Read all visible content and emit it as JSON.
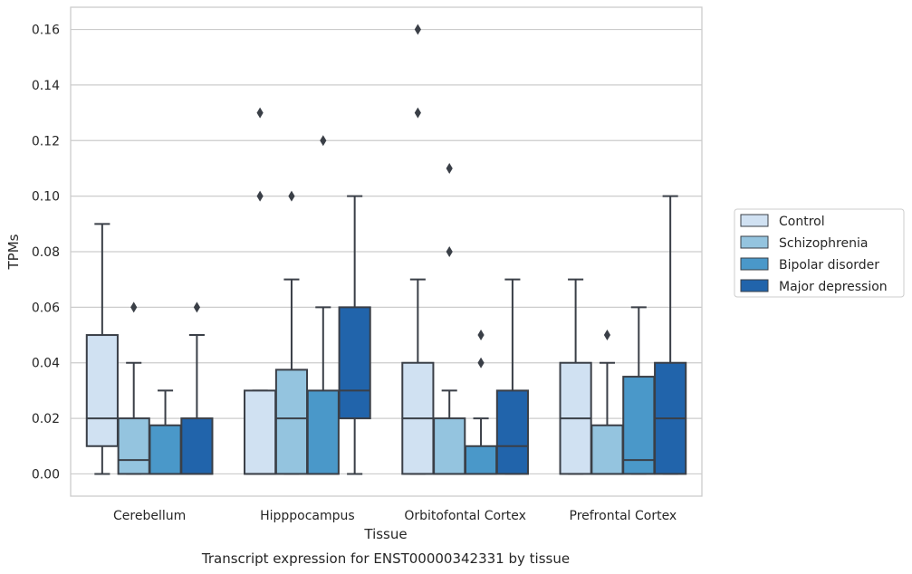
{
  "chart_data": {
    "type": "box",
    "xlabel": "Tissue",
    "ylabel": "TPMs",
    "caption": "Transcript expression for ENST00000342331 by tissue",
    "ylim": [
      -0.008,
      0.168
    ],
    "yticks": [
      0.0,
      0.02,
      0.04,
      0.06,
      0.08,
      0.1,
      0.12,
      0.14,
      0.16
    ],
    "ytick_labels": [
      "0.00",
      "0.02",
      "0.04",
      "0.06",
      "0.08",
      "0.10",
      "0.12",
      "0.14",
      "0.16"
    ],
    "grid": "horizontal",
    "legend_position": "right",
    "categories": [
      "Cerebellum",
      "Hipppocampus",
      "Orbitofontal Cortex",
      "Prefrontal Cortex"
    ],
    "series": [
      {
        "name": "Control",
        "color": "#d0e1f2",
        "boxes": [
          {
            "whislo": 0.0,
            "q1": 0.01,
            "med": 0.02,
            "q3": 0.05,
            "whishi": 0.09,
            "fliers": []
          },
          {
            "whislo": 0.0,
            "q1": 0.0,
            "med": 0.0,
            "q3": 0.03,
            "whishi": 0.03,
            "fliers": [
              0.1,
              0.13
            ]
          },
          {
            "whislo": 0.0,
            "q1": 0.0,
            "med": 0.02,
            "q3": 0.04,
            "whishi": 0.07,
            "fliers": [
              0.13,
              0.16
            ]
          },
          {
            "whislo": 0.0,
            "q1": 0.0,
            "med": 0.02,
            "q3": 0.04,
            "whishi": 0.07,
            "fliers": []
          }
        ]
      },
      {
        "name": "Schizophrenia",
        "color": "#94c4df",
        "boxes": [
          {
            "whislo": 0.0,
            "q1": 0.0,
            "med": 0.005,
            "q3": 0.02,
            "whishi": 0.04,
            "fliers": [
              0.06
            ]
          },
          {
            "whislo": 0.0,
            "q1": 0.0,
            "med": 0.02,
            "q3": 0.0375,
            "whishi": 0.07,
            "fliers": [
              0.1
            ]
          },
          {
            "whislo": 0.0,
            "q1": 0.0,
            "med": 0.0,
            "q3": 0.02,
            "whishi": 0.03,
            "fliers": [
              0.08,
              0.11
            ]
          },
          {
            "whislo": 0.0,
            "q1": 0.0,
            "med": 0.0,
            "q3": 0.0175,
            "whishi": 0.04,
            "fliers": [
              0.05
            ]
          }
        ]
      },
      {
        "name": "Bipolar disorder",
        "color": "#4a98c9",
        "boxes": [
          {
            "whislo": 0.0,
            "q1": 0.0,
            "med": 0.0,
            "q3": 0.0175,
            "whishi": 0.03,
            "fliers": []
          },
          {
            "whislo": 0.0,
            "q1": 0.0,
            "med": 0.0,
            "q3": 0.03,
            "whishi": 0.06,
            "fliers": [
              0.12
            ]
          },
          {
            "whislo": 0.0,
            "q1": 0.0,
            "med": 0.0,
            "q3": 0.01,
            "whishi": 0.02,
            "fliers": [
              0.04,
              0.05
            ]
          },
          {
            "whislo": 0.0,
            "q1": 0.0,
            "med": 0.005,
            "q3": 0.035,
            "whishi": 0.06,
            "fliers": []
          }
        ]
      },
      {
        "name": "Major depression",
        "color": "#2164ab",
        "boxes": [
          {
            "whislo": 0.0,
            "q1": 0.0,
            "med": 0.0,
            "q3": 0.02,
            "whishi": 0.05,
            "fliers": [
              0.06
            ]
          },
          {
            "whislo": 0.0,
            "q1": 0.02,
            "med": 0.03,
            "q3": 0.06,
            "whishi": 0.1,
            "fliers": []
          },
          {
            "whislo": 0.0,
            "q1": 0.0,
            "med": 0.01,
            "q3": 0.03,
            "whishi": 0.07,
            "fliers": []
          },
          {
            "whislo": 0.0,
            "q1": 0.0,
            "med": 0.02,
            "q3": 0.04,
            "whishi": 0.1,
            "fliers": []
          }
        ]
      }
    ]
  }
}
